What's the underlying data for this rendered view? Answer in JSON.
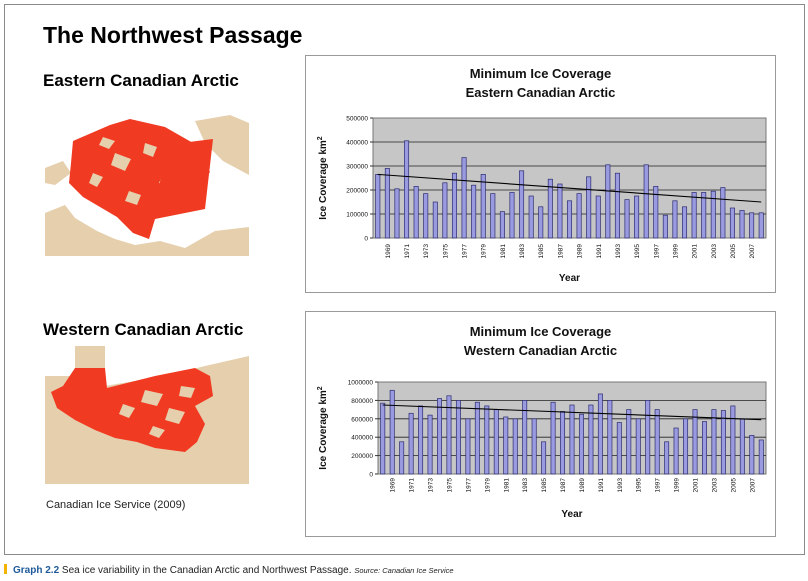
{
  "page_title": "The Northwest Passage",
  "regions": [
    {
      "title": "Eastern Canadian Arctic"
    },
    {
      "title": "Western Canadian Arctic"
    }
  ],
  "source_note": "Canadian Ice Service (2009)",
  "caption": {
    "label": "Graph 2.2",
    "text": "Sea ice variability in the Canadian Arctic and Northwest Passage.",
    "source": "Source: Canadian Ice Service"
  },
  "colors": {
    "bar_fill": "#9a9ae0",
    "bar_stroke": "#2c2c70",
    "plot_bg": "#c6c6c6",
    "map_land": "#e6cfac",
    "map_ice": "#f03a22",
    "caption_accent": "#f2b400"
  },
  "chart_data": [
    {
      "type": "bar",
      "title": "Minimum Ice Coverage",
      "subtitle": "Eastern Canadian Arctic",
      "xlabel": "Year",
      "ylabel": "Ice Coverage km",
      "ylabel_sup": "2",
      "ylim": [
        0,
        500000
      ],
      "yticks": [
        0,
        100000,
        200000,
        300000,
        400000,
        500000
      ],
      "grid": true,
      "trendline": true,
      "trend_start": 265000,
      "trend_end": 150000,
      "x": [
        1968,
        1969,
        1970,
        1971,
        1972,
        1973,
        1974,
        1975,
        1976,
        1977,
        1978,
        1979,
        1980,
        1981,
        1982,
        1983,
        1984,
        1985,
        1986,
        1987,
        1988,
        1989,
        1990,
        1991,
        1992,
        1993,
        1994,
        1995,
        1996,
        1997,
        1998,
        1999,
        2000,
        2001,
        2002,
        2003,
        2004,
        2005,
        2006,
        2007,
        2008
      ],
      "xtick_labels": [
        "1969",
        "1971",
        "1973",
        "1975",
        "1977",
        "1979",
        "1981",
        "1983",
        "1985",
        "1987",
        "1989",
        "1991",
        "1993",
        "1995",
        "1997",
        "1999",
        "2001",
        "2003",
        "2005",
        "2007"
      ],
      "values": [
        265000,
        290000,
        205000,
        405000,
        215000,
        185000,
        150000,
        230000,
        270000,
        335000,
        220000,
        265000,
        185000,
        110000,
        190000,
        280000,
        175000,
        130000,
        245000,
        225000,
        155000,
        185000,
        255000,
        175000,
        305000,
        270000,
        160000,
        175000,
        305000,
        215000,
        95000,
        155000,
        130000,
        190000,
        190000,
        195000,
        210000,
        125000,
        115000,
        105000,
        105000
      ]
    },
    {
      "type": "bar",
      "title": "Minimum Ice Coverage",
      "subtitle": "Western Canadian Arctic",
      "xlabel": "Year",
      "ylabel": "Ice Coverage km",
      "ylabel_sup": "2",
      "ylim": [
        0,
        1000000
      ],
      "yticks": [
        0,
        200000,
        400000,
        600000,
        800000,
        1000000
      ],
      "grid": true,
      "trendline": true,
      "trend_start": 750000,
      "trend_end": 590000,
      "x": [
        1968,
        1969,
        1970,
        1971,
        1972,
        1973,
        1974,
        1975,
        1976,
        1977,
        1978,
        1979,
        1980,
        1981,
        1982,
        1983,
        1984,
        1985,
        1986,
        1987,
        1988,
        1989,
        1990,
        1991,
        1992,
        1993,
        1994,
        1995,
        1996,
        1997,
        1998,
        1999,
        2000,
        2001,
        2002,
        2003,
        2004,
        2005,
        2006,
        2007,
        2008
      ],
      "xtick_labels": [
        "1969",
        "1971",
        "1973",
        "1975",
        "1977",
        "1979",
        "1981",
        "1983",
        "1985",
        "1987",
        "1989",
        "1991",
        "1993",
        "1995",
        "1997",
        "1999",
        "2001",
        "2003",
        "2005",
        "2007"
      ],
      "values": [
        770000,
        910000,
        350000,
        660000,
        740000,
        640000,
        820000,
        850000,
        800000,
        600000,
        780000,
        740000,
        700000,
        620000,
        600000,
        800000,
        600000,
        350000,
        780000,
        680000,
        750000,
        650000,
        750000,
        870000,
        800000,
        560000,
        700000,
        600000,
        800000,
        700000,
        350000,
        500000,
        600000,
        700000,
        570000,
        700000,
        690000,
        740000,
        600000,
        420000,
        370000
      ]
    }
  ]
}
